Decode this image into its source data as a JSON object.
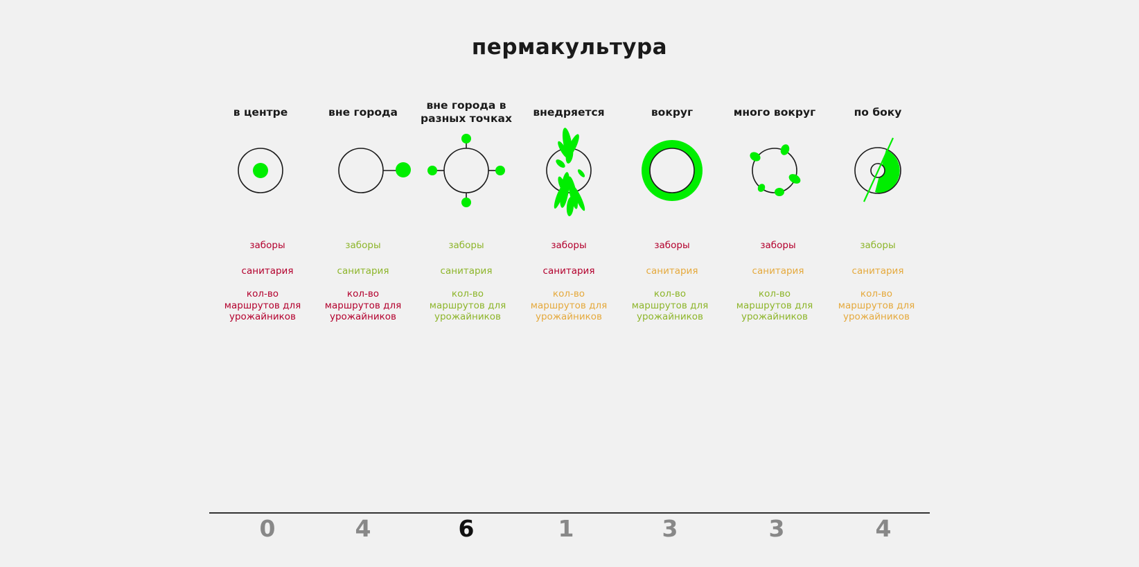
{
  "title": "пермакультура",
  "colors": {
    "green_fill": "#00ee00",
    "bad": "#b3002d",
    "good": "#8db52a",
    "mid": "#e5a93c",
    "score_gray": "#888888",
    "score_best": "#111111"
  },
  "columns": [
    {
      "heading": "в центре",
      "icon": "center-dot-icon",
      "criteria": {
        "fences": "заборы",
        "sanitation": "санитария",
        "routes": "кол-во маршрутов для урожайников"
      },
      "ratings": {
        "fences": "bad",
        "sanitation": "bad",
        "routes": "bad"
      },
      "score": "0"
    },
    {
      "heading": "вне города",
      "icon": "outside-node-icon",
      "criteria": {
        "fences": "заборы",
        "sanitation": "санитария",
        "routes": "кол-во маршрутов для урожайников"
      },
      "ratings": {
        "fences": "good",
        "sanitation": "good",
        "routes": "bad"
      },
      "score": "4"
    },
    {
      "heading": "вне города в разных точках",
      "icon": "four-nodes-icon",
      "criteria": {
        "fences": "заборы",
        "sanitation": "санитария",
        "routes": "кол-во маршрутов для урожайников"
      },
      "ratings": {
        "fences": "good",
        "sanitation": "good",
        "routes": "good"
      },
      "score": "6"
    },
    {
      "heading": "внедряется",
      "icon": "penetrating-leaves-icon",
      "criteria": {
        "fences": "заборы",
        "sanitation": "санитария",
        "routes": "кол-во маршрутов для урожайников"
      },
      "ratings": {
        "fences": "bad",
        "sanitation": "bad",
        "routes": "mid"
      },
      "score": "1"
    },
    {
      "heading": "вокруг",
      "icon": "ring-icon",
      "criteria": {
        "fences": "заборы",
        "sanitation": "санитария",
        "routes": "кол-во маршрутов для урожайников"
      },
      "ratings": {
        "fences": "bad",
        "sanitation": "mid",
        "routes": "good"
      },
      "score": "3"
    },
    {
      "heading": "много вокруг",
      "icon": "scattered-blobs-icon",
      "criteria": {
        "fences": "заборы",
        "sanitation": "санитария",
        "routes": "кол-во маршрутов для урожайников"
      },
      "ratings": {
        "fences": "bad",
        "sanitation": "mid",
        "routes": "good"
      },
      "score": "3"
    },
    {
      "heading": "по боку",
      "icon": "side-segment-icon",
      "criteria": {
        "fences": "заборы",
        "sanitation": "санитария",
        "routes": "кол-во маршрутов для урожайников"
      },
      "ratings": {
        "fences": "good",
        "sanitation": "mid",
        "routes": "mid"
      },
      "score": "4"
    }
  ],
  "best_score_index": 2
}
